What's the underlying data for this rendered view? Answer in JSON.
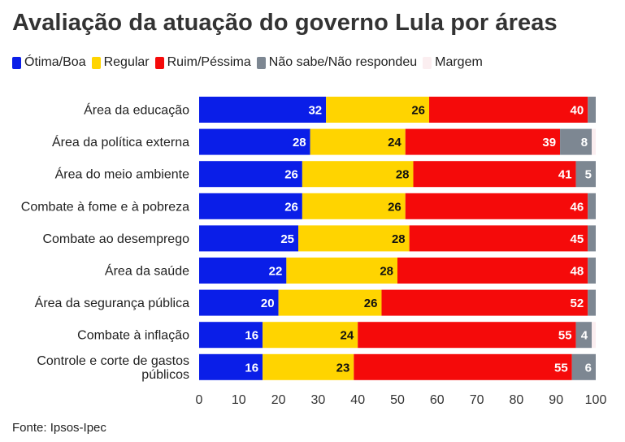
{
  "title": "Avaliação da atuação do governo Lula por áreas",
  "source": "Fonte: Ipsos-Ipec",
  "legend": [
    {
      "label": "Ótima/Boa",
      "color": "#0a1ee8"
    },
    {
      "label": "Regular",
      "color": "#ffd400"
    },
    {
      "label": "Ruim/Péssima",
      "color": "#f50a0a"
    },
    {
      "label": "Não sabe/Não respondeu",
      "color": "#7d8792"
    },
    {
      "label": "Margem",
      "color": "#fbeef0"
    }
  ],
  "chart_data": {
    "type": "bar",
    "orientation": "horizontal",
    "stacked": true,
    "title": "Avaliação da atuação do governo Lula por áreas",
    "categories": [
      [
        "Área da educação"
      ],
      [
        "Área da política externa"
      ],
      [
        "Área do meio ambiente"
      ],
      [
        "Combate à fome e à pobreza"
      ],
      [
        "Combate ao desemprego"
      ],
      [
        "Área da saúde"
      ],
      [
        "Área da segurança pública"
      ],
      [
        "Combate à inflação"
      ],
      [
        "Controle e corte de gastos",
        "públicos"
      ]
    ],
    "series": [
      {
        "name": "Ótima/Boa",
        "color": "#0a1ee8",
        "label_color": "#ffffff",
        "values": [
          32,
          28,
          26,
          26,
          25,
          22,
          20,
          16,
          16
        ]
      },
      {
        "name": "Regular",
        "color": "#ffd400",
        "label_color": "#111111",
        "values": [
          26,
          24,
          28,
          26,
          28,
          28,
          26,
          24,
          23
        ]
      },
      {
        "name": "Ruim/Péssima",
        "color": "#f50a0a",
        "label_color": "#ffffff",
        "values": [
          40,
          39,
          41,
          46,
          45,
          48,
          52,
          55,
          55
        ]
      },
      {
        "name": "Não sabe/Não respondeu",
        "color": "#7d8792",
        "label_color": "#ffffff",
        "values": [
          2,
          8,
          5,
          2,
          2,
          2,
          2,
          4,
          6
        ]
      },
      {
        "name": "Margem",
        "color": "#fbeef0",
        "label_color": "#111111",
        "values": [
          0,
          1,
          0,
          0,
          0,
          0,
          0,
          1,
          0
        ]
      }
    ],
    "hidden_labels": {
      "Não sabe/Não respondeu": [
        2
      ]
    },
    "xlim": [
      0,
      100
    ],
    "xticks": [
      0,
      10,
      20,
      30,
      40,
      50,
      60,
      70,
      80,
      90,
      100
    ],
    "grid": false,
    "legend_position": "top-left"
  }
}
